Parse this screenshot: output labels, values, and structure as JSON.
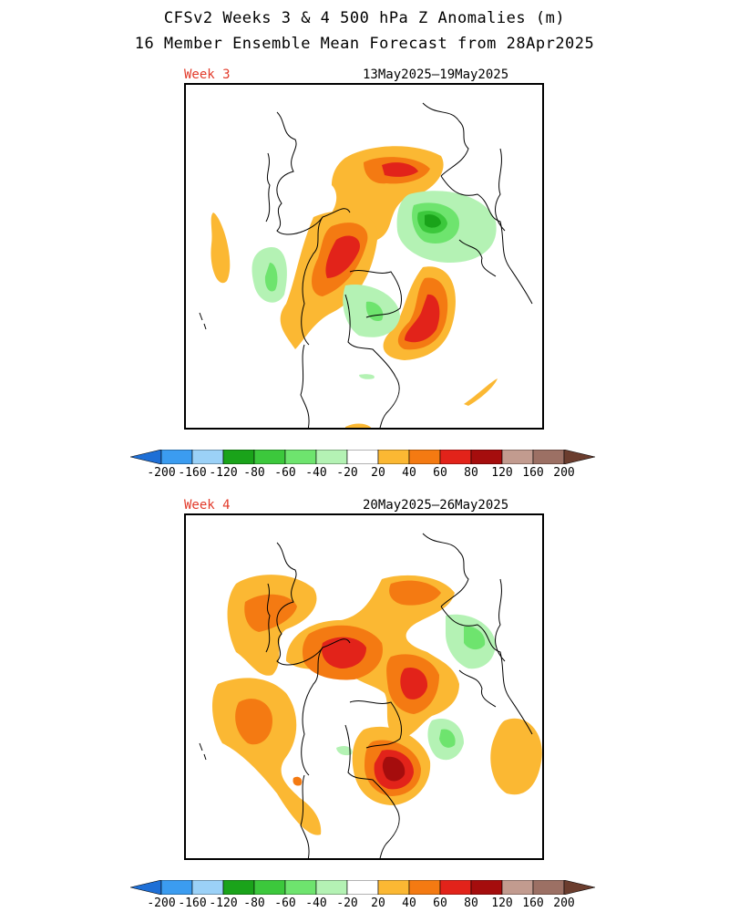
{
  "header": {
    "title_line1": "CFSv2 Weeks 3 & 4 500 hPa Z Anomalies (m)",
    "title_line2": "16 Member Ensemble Mean Forecast from 28Apr2025"
  },
  "panels": [
    {
      "label": "Week 3",
      "date_range": "13May2025–19May2025"
    },
    {
      "label": "Week 4",
      "date_range": "20May2025–26May2025"
    }
  ],
  "colorbar": {
    "tick_labels": [
      "-200",
      "-160",
      "-120",
      "-80",
      "-60",
      "-40",
      "-20",
      "20",
      "40",
      "60",
      "80",
      "120",
      "160",
      "200"
    ],
    "colors": [
      "#1e6fd6",
      "#3b9cf0",
      "#9bd1f7",
      "#1aa31a",
      "#3cc83c",
      "#6ee46e",
      "#b4f2b4",
      "#ffffff",
      "#fbb833",
      "#f47a12",
      "#e2231a",
      "#a50d0d",
      "#c29b8f",
      "#9c7064",
      "#6b3d2e"
    ]
  },
  "colors": {
    "week_label": "#e23a2a",
    "coast": "#000000"
  }
}
